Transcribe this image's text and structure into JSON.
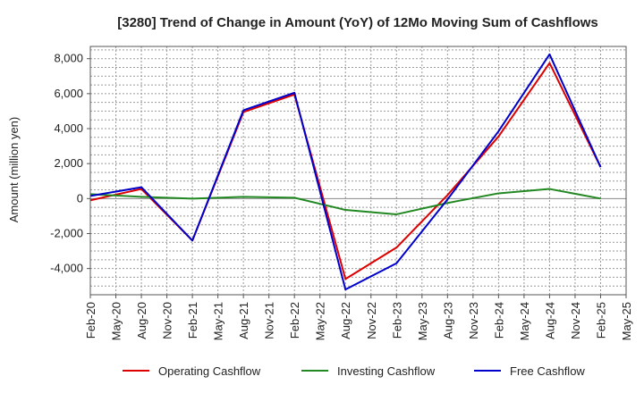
{
  "chart_data": {
    "type": "line",
    "title": "[3280]  Trend of Change in Amount (YoY) of 12Mo Moving Sum of Cashflows",
    "xlabel": "",
    "ylabel": "Amount (million yen)",
    "ylim": [
      -5500,
      8700
    ],
    "yticks": [
      -4000,
      -2000,
      0,
      2000,
      4000,
      6000,
      8000
    ],
    "ytick_labels": [
      "-4,000",
      "-2,000",
      "0",
      "2,000",
      "4,000",
      "6,000",
      "8,000"
    ],
    "categories": [
      "Feb-20",
      "May-20",
      "Aug-20",
      "Nov-20",
      "Feb-21",
      "May-21",
      "Aug-21",
      "Nov-21",
      "Feb-22",
      "May-22",
      "Aug-22",
      "Nov-22",
      "Feb-23",
      "May-23",
      "Aug-23",
      "Nov-23",
      "Feb-24",
      "May-24",
      "Aug-24",
      "Nov-24",
      "Feb-25",
      "May-25"
    ],
    "series": [
      {
        "name": "Operating Cashflow",
        "color": "#dd0000",
        "values": [
          -100,
          null,
          550,
          null,
          -2400,
          null,
          4950,
          null,
          5950,
          null,
          -4600,
          null,
          -2800,
          null,
          200,
          null,
          3550,
          null,
          7750,
          null,
          1800,
          null
        ]
      },
      {
        "name": "Investing Cashflow",
        "color": "#228822",
        "values": [
          250,
          null,
          100,
          null,
          0,
          null,
          100,
          null,
          50,
          null,
          -650,
          null,
          -900,
          null,
          -250,
          null,
          300,
          null,
          550,
          null,
          0,
          null
        ]
      },
      {
        "name": "Free Cashflow",
        "color": "#0000cc",
        "values": [
          150,
          null,
          650,
          null,
          -2400,
          null,
          5050,
          null,
          6050,
          null,
          -5200,
          null,
          -3700,
          null,
          -50,
          null,
          3850,
          null,
          8250,
          null,
          1800,
          null
        ]
      }
    ],
    "legend": "bottom-center"
  }
}
